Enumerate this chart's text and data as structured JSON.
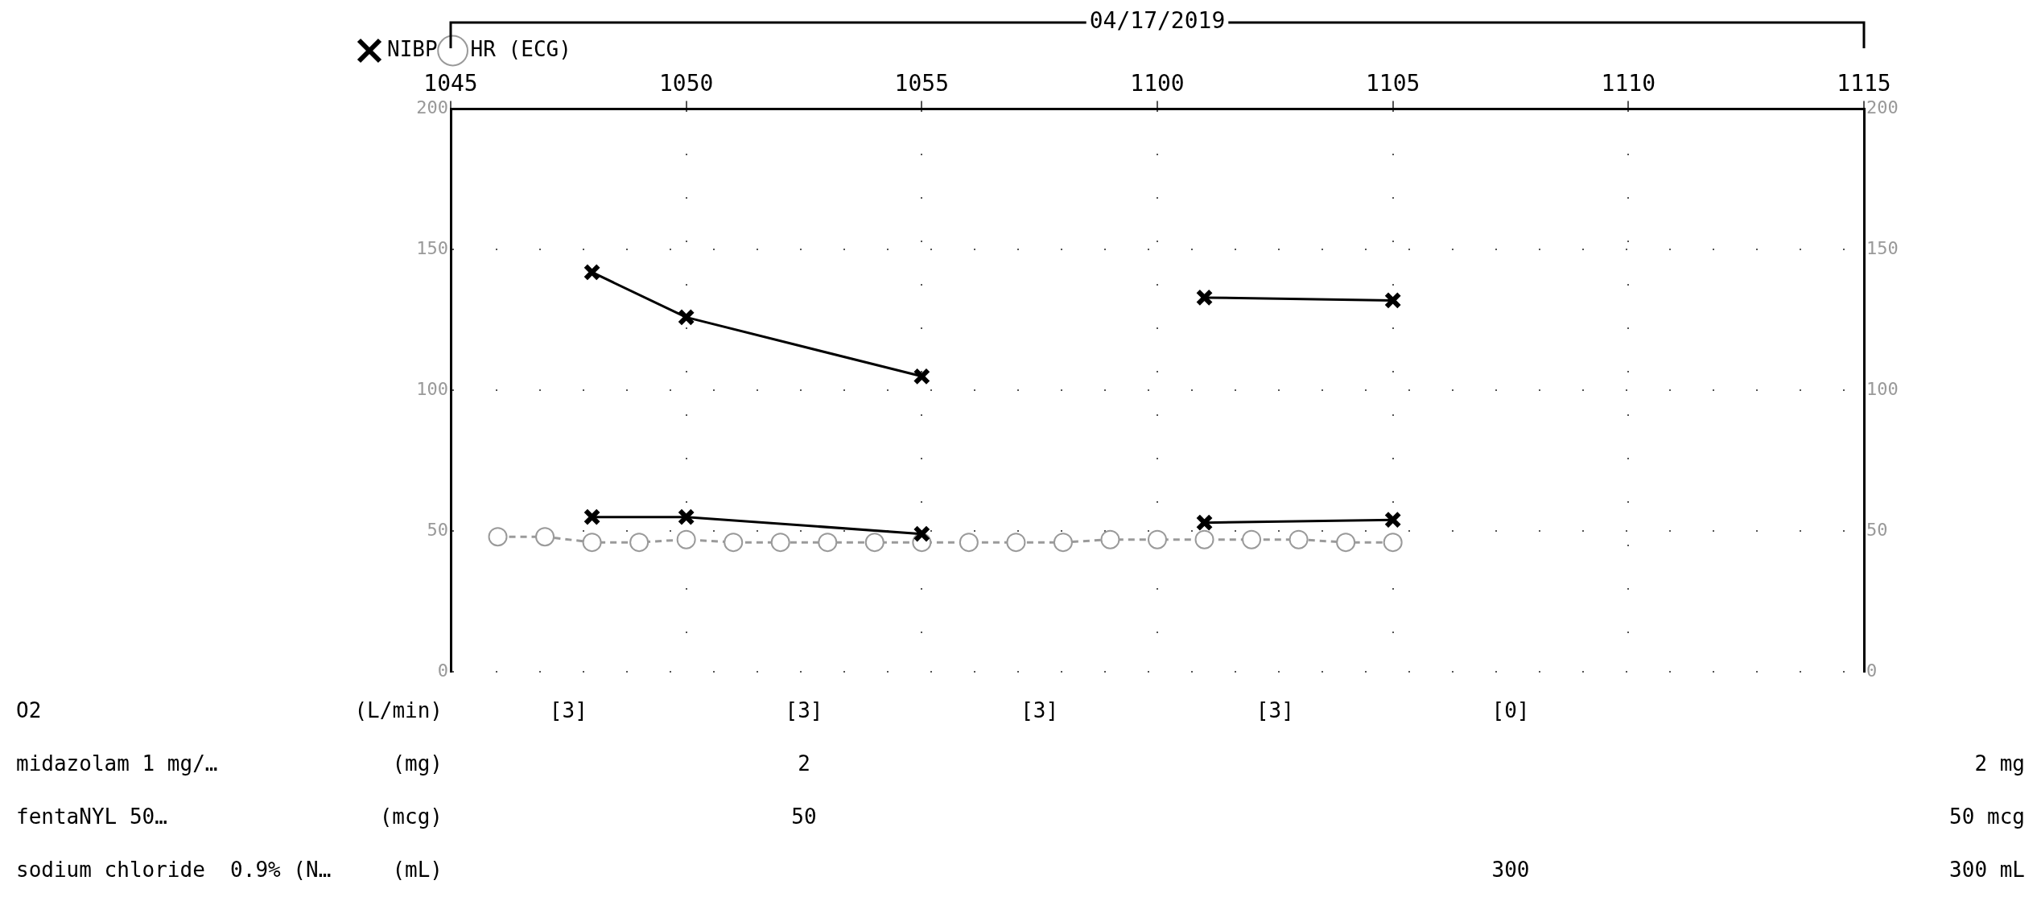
{
  "chart_data": {
    "type": "line",
    "xlabel": "04/17/2019",
    "xlim": [
      "2019-04-17T10:45",
      "2019-04-17T11:15"
    ],
    "xticks": [
      {
        "value": "2019-04-17T10:45",
        "label": "1045"
      },
      {
        "value": "2019-04-17T10:50",
        "label": "1050"
      },
      {
        "value": "2019-04-17T10:55",
        "label": "1055"
      },
      {
        "value": "2019-04-17T11:00",
        "label": "1100"
      },
      {
        "value": "2019-04-17T11:05",
        "label": "1105"
      },
      {
        "value": "2019-04-17T11:10",
        "label": "1110"
      },
      {
        "value": "2019-04-17T11:15",
        "label": "1115"
      }
    ],
    "ylim": [
      0,
      200
    ],
    "yticks": [
      0,
      50,
      100,
      150,
      200
    ],
    "y2lim": [
      0,
      200
    ],
    "y2ticks": [
      0,
      50,
      100,
      150,
      200
    ],
    "grid": true,
    "legend": "top left",
    "series": [
      {
        "name": "NIBP",
        "color": "#000000",
        "marker": "cross",
        "line_style": "solid",
        "x": [
          "2019-04-17T10:48",
          "2019-04-17T10:50",
          "2019-04-17T10:55"
        ],
        "values": [
          142,
          126,
          105
        ]
      },
      {
        "color": "#000000",
        "marker": "cross",
        "line_style": "solid",
        "x": [
          "2019-04-17T10:48",
          "2019-04-17T10:50",
          "2019-04-17T10:55"
        ],
        "values": [
          55,
          55,
          49
        ]
      },
      {
        "color": "#000000",
        "marker": "cross",
        "line_style": "solid",
        "x": [
          "2019-04-17T11:01",
          "2019-04-17T11:05"
        ],
        "values": [
          133,
          132
        ]
      },
      {
        "color": "#000000",
        "marker": "cross",
        "line_style": "solid",
        "x": [
          "2019-04-17T11:01",
          "2019-04-17T11:05"
        ],
        "values": [
          53,
          54
        ]
      },
      {
        "name": "HR (ECG)",
        "color": "#9a9a9a",
        "marker": "circle",
        "line_style": "dashed",
        "x": [
          "2019-04-17T10:46",
          "2019-04-17T10:47",
          "2019-04-17T10:48",
          "2019-04-17T10:49",
          "2019-04-17T10:50",
          "2019-04-17T10:51",
          "2019-04-17T10:52",
          "2019-04-17T10:53",
          "2019-04-17T10:54",
          "2019-04-17T10:55",
          "2019-04-17T10:56",
          "2019-04-17T10:57",
          "2019-04-17T10:58",
          "2019-04-17T10:59",
          "2019-04-17T11:00",
          "2019-04-17T11:01",
          "2019-04-17T11:02",
          "2019-04-17T11:03",
          "2019-04-17T11:04",
          "2019-04-17T11:05"
        ],
        "values": [
          48,
          48,
          46,
          46,
          47,
          46,
          46,
          46,
          46,
          46,
          46,
          46,
          46,
          47,
          47,
          47,
          47,
          47,
          46,
          46
        ]
      }
    ],
    "annotations": [
      "O2",
      "(L/min)",
      "[3]",
      "[3]",
      "[3]",
      "[3]",
      "[0]",
      "midazolam 1 mg/…",
      "(mg)",
      "2",
      "2 mg",
      "fentaNYL 50…",
      "(mcg)",
      "50",
      "50 mcg",
      "sodium chloride  0.9% (N…",
      "(mL)",
      "300",
      "300 mL"
    ]
  }
}
